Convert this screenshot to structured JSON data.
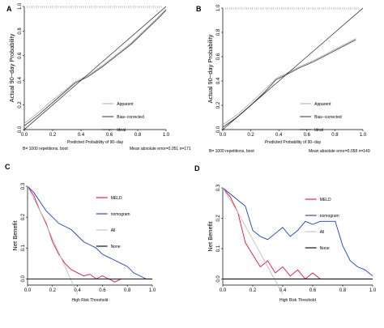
{
  "colors": {
    "line_black": "#000000",
    "ideal_gray": "#aaaaaa",
    "bias_gray": "#444444",
    "meld_red": "#e8112d",
    "nomogram_blue": "#1a3fcc",
    "all_gray": "#bbbbbb"
  },
  "chart_data": [
    {
      "id": "A",
      "type": "line",
      "panel_label": "A",
      "xlabel": "Predicted Probability of 90−day",
      "ylabel": "Actual 90−day Probability",
      "xlim": [
        0,
        1
      ],
      "ylim": [
        0,
        1
      ],
      "xticks": [
        "0.0",
        "0.2",
        "0.4",
        "0.6",
        "0.8",
        "1.0"
      ],
      "yticks": [
        "0.0",
        "0.2",
        "0.4",
        "0.6",
        "0.8",
        "1.0"
      ],
      "legend": [
        "Apparent",
        "Bias−corrected",
        "Ideal"
      ],
      "note_left": "B= 1000 repetitions, boot",
      "note_right": "Mean absolute error=0.051 n=171",
      "series": [
        {
          "name": "Apparent",
          "x": [
            0.0,
            0.1,
            0.2,
            0.3,
            0.36,
            0.45,
            0.55,
            0.65,
            0.75,
            0.85,
            0.95,
            1.0
          ],
          "y": [
            0.05,
            0.14,
            0.24,
            0.33,
            0.39,
            0.44,
            0.52,
            0.61,
            0.7,
            0.81,
            0.92,
            0.98
          ]
        },
        {
          "name": "Bias−corrected",
          "x": [
            0.0,
            0.1,
            0.2,
            0.3,
            0.36,
            0.45,
            0.55,
            0.65,
            0.75,
            0.85,
            0.95,
            1.0
          ],
          "y": [
            0.03,
            0.12,
            0.22,
            0.32,
            0.38,
            0.43,
            0.51,
            0.6,
            0.69,
            0.8,
            0.91,
            0.97
          ]
        },
        {
          "name": "Ideal",
          "x": [
            0,
            1
          ],
          "y": [
            0,
            1
          ]
        }
      ]
    },
    {
      "id": "B",
      "type": "line",
      "panel_label": "B",
      "xlabel": "Predicted Probability of 90−day",
      "ylabel": "Actual 90−day Probability",
      "xlim": [
        0,
        1
      ],
      "ylim": [
        0,
        1
      ],
      "xticks": [
        "0.0",
        "0.2",
        "0.4",
        "0.6",
        "0.8",
        "1.0"
      ],
      "yticks": [
        "0.0",
        "0.2",
        "0.4",
        "0.6",
        "0.8",
        "1.0"
      ],
      "legend": [
        "Apparent",
        "Bias−corrected",
        "Ideal"
      ],
      "note_left": "B= 1000 repetitions, boot",
      "note_right": "Mean absolute error=0.058 n=149",
      "series": [
        {
          "name": "Apparent",
          "x": [
            0.0,
            0.1,
            0.2,
            0.3,
            0.38,
            0.45,
            0.55,
            0.65,
            0.75,
            0.85,
            0.95
          ],
          "y": [
            0.04,
            0.12,
            0.22,
            0.33,
            0.42,
            0.46,
            0.52,
            0.57,
            0.63,
            0.69,
            0.75
          ]
        },
        {
          "name": "Bias−corrected",
          "x": [
            0.0,
            0.1,
            0.2,
            0.3,
            0.38,
            0.45,
            0.55,
            0.65,
            0.75,
            0.85,
            0.95
          ],
          "y": [
            0.02,
            0.1,
            0.2,
            0.31,
            0.41,
            0.45,
            0.51,
            0.56,
            0.62,
            0.68,
            0.74
          ]
        },
        {
          "name": "Ideal",
          "x": [
            0,
            1
          ],
          "y": [
            0,
            1
          ]
        }
      ]
    },
    {
      "id": "C",
      "type": "line",
      "panel_label": "C",
      "xlabel": "High Risk Threshold",
      "ylabel": "Net Benefit",
      "xlim": [
        0,
        1
      ],
      "ylim": [
        -0.02,
        0.3
      ],
      "xticks": [
        "0.0",
        "0.2",
        "0.4",
        "0.6",
        "0.8",
        "1.0"
      ],
      "yticks": [
        "0.0",
        "0.1",
        "0.2",
        "0.3"
      ],
      "legend": [
        "MELD",
        "nomogram",
        "All",
        "None"
      ],
      "series": [
        {
          "name": "MELD",
          "x": [
            0.0,
            0.05,
            0.1,
            0.15,
            0.2,
            0.25,
            0.3,
            0.35,
            0.4,
            0.45,
            0.5,
            0.55,
            0.6,
            0.65,
            0.7,
            0.75
          ],
          "y": [
            0.3,
            0.27,
            0.22,
            0.18,
            0.12,
            0.08,
            0.05,
            0.03,
            0.02,
            0.01,
            0.015,
            0.0,
            0.01,
            0.0,
            -0.01,
            0.0
          ]
        },
        {
          "name": "nomogram",
          "x": [
            0.0,
            0.05,
            0.1,
            0.15,
            0.2,
            0.25,
            0.3,
            0.35,
            0.4,
            0.45,
            0.5,
            0.55,
            0.6,
            0.65,
            0.7,
            0.75,
            0.8,
            0.85,
            0.9,
            0.95,
            1.0
          ],
          "y": [
            0.3,
            0.28,
            0.25,
            0.22,
            0.2,
            0.18,
            0.17,
            0.16,
            0.14,
            0.12,
            0.11,
            0.1,
            0.08,
            0.07,
            0.06,
            0.05,
            0.04,
            0.02,
            0.01,
            0.0,
            0.0
          ]
        },
        {
          "name": "All",
          "x": [
            0.0,
            0.1,
            0.2,
            0.3,
            0.4
          ],
          "y": [
            0.3,
            0.22,
            0.13,
            0.04,
            -0.05
          ]
        },
        {
          "name": "None",
          "x": [
            0,
            1
          ],
          "y": [
            0,
            0
          ]
        }
      ]
    },
    {
      "id": "D",
      "type": "line",
      "panel_label": "D",
      "xlabel": "High Risk Threshold",
      "ylabel": "Net Benefit",
      "xlim": [
        0,
        1
      ],
      "ylim": [
        -0.02,
        0.3
      ],
      "xticks": [
        "0.0",
        "0.2",
        "0.4",
        "0.6",
        "0.8",
        "1.0"
      ],
      "yticks": [
        "0.0",
        "0.1",
        "0.2",
        "0.3"
      ],
      "legend": [
        "MELD",
        "nomogram",
        "All",
        "None"
      ],
      "series": [
        {
          "name": "MELD",
          "x": [
            0.0,
            0.05,
            0.1,
            0.15,
            0.2,
            0.25,
            0.3,
            0.35,
            0.4,
            0.45,
            0.5,
            0.55,
            0.6,
            0.65
          ],
          "y": [
            0.3,
            0.27,
            0.22,
            0.12,
            0.08,
            0.04,
            0.06,
            0.02,
            0.04,
            0.01,
            0.03,
            0.0,
            0.02,
            0.0
          ]
        },
        {
          "name": "nomogram",
          "x": [
            0.0,
            0.05,
            0.1,
            0.15,
            0.2,
            0.25,
            0.3,
            0.35,
            0.4,
            0.45,
            0.5,
            0.55,
            0.6,
            0.65,
            0.7,
            0.75,
            0.8,
            0.85,
            0.9,
            0.95,
            1.0
          ],
          "y": [
            0.3,
            0.28,
            0.26,
            0.24,
            0.16,
            0.14,
            0.13,
            0.15,
            0.17,
            0.14,
            0.16,
            0.19,
            0.18,
            0.19,
            0.19,
            0.19,
            0.11,
            0.06,
            0.04,
            0.03,
            0.01
          ]
        },
        {
          "name": "All",
          "x": [
            0.0,
            0.1,
            0.2,
            0.3,
            0.4
          ],
          "y": [
            0.3,
            0.22,
            0.13,
            0.04,
            -0.05
          ]
        },
        {
          "name": "None",
          "x": [
            0,
            1
          ],
          "y": [
            0,
            0
          ]
        }
      ]
    }
  ]
}
